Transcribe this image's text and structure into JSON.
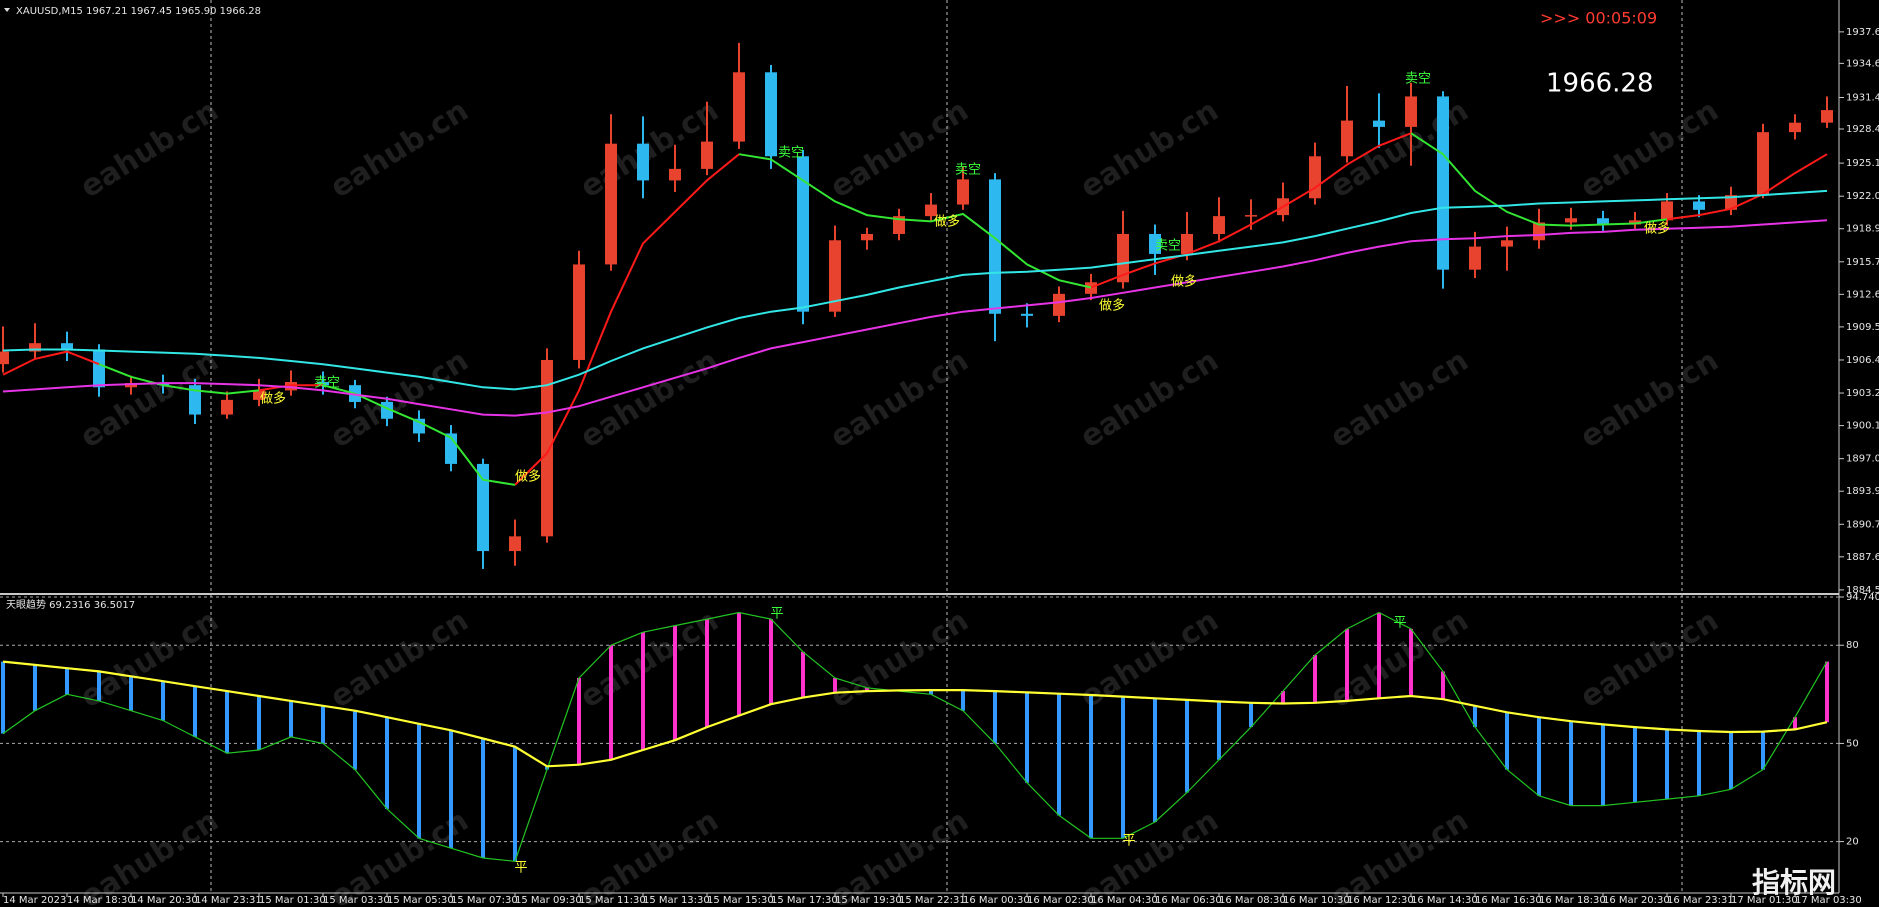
{
  "chart_data": [
    {
      "type": "candlestick",
      "title": "XAUUSD,M15  1967.21 1967.45 1965.90 1966.28",
      "categories": [
        "14 Mar 2023",
        null,
        "14 Mar 18:30",
        null,
        "14 Mar 20:30",
        null,
        "14 Mar 23:31",
        null,
        "15 Mar 01:30",
        null,
        "15 Mar 03:30",
        null,
        "15 Mar 05:30",
        null,
        "15 Mar 07:30",
        null,
        "15 Mar 09:30",
        null,
        "15 Mar 11:30",
        null,
        "15 Mar 13:30",
        null,
        "15 Mar 15:30",
        null,
        "15 Mar 17:30",
        null,
        "15 Mar 19:30",
        null,
        "15 Mar 22:31",
        null,
        "16 Mar 00:30",
        null,
        "16 Mar 02:30",
        null,
        "16 Mar 04:30",
        null,
        "16 Mar 06:30",
        null,
        "16 Mar 08:30",
        null,
        "16 Mar 10:30",
        null,
        "16 Mar 12:30",
        null,
        "16 Mar 14:30",
        null,
        "16 Mar 16:30",
        null,
        "16 Mar 18:30",
        null,
        "16 Mar 20:30",
        null,
        "16 Mar 23:31",
        null,
        "17 Mar 01:30",
        null,
        "17 Mar 03:30",
        null
      ],
      "open": [
        1906.0,
        1907.2,
        1908.0,
        1907.4,
        1903.8,
        1904.2,
        1904.0,
        1901.2,
        1902.6,
        1903.5,
        1904.3,
        1904.0,
        1902.4,
        1900.8,
        1899.4,
        1896.5,
        1888.2,
        1889.6,
        1906.4,
        1915.5,
        1927.0,
        1923.5,
        1924.6,
        1927.2,
        1933.8,
        1925.8,
        1911.0,
        1917.8,
        1918.4,
        1920.1,
        1921.2,
        1923.6,
        1910.8,
        1910.6,
        1912.7,
        1913.8,
        1918.4,
        1916.5,
        1918.4,
        1920.1,
        1920.2,
        1921.8,
        1925.8,
        1929.2,
        1928.6,
        1931.5,
        1915.0,
        1917.2,
        1917.8,
        1919.5,
        1919.9,
        1919.3,
        1919.7,
        1921.5,
        1920.7,
        1922.1,
        1928.1,
        1929.0
      ],
      "high": [
        1909.6,
        1909.9,
        1909.1,
        1907.9,
        1904.9,
        1905.0,
        1904.6,
        1903.4,
        1904.6,
        1905.4,
        1905.3,
        1904.5,
        1902.9,
        1901.6,
        1900.2,
        1897.0,
        1891.2,
        1907.5,
        1916.8,
        1929.8,
        1929.6,
        1926.9,
        1931.0,
        1936.6,
        1934.5,
        1926.4,
        1919.2,
        1919.0,
        1920.8,
        1922.3,
        1924.8,
        1924.2,
        1911.8,
        1913.4,
        1914.6,
        1920.6,
        1919.3,
        1920.5,
        1921.9,
        1921.7,
        1923.3,
        1927.1,
        1932.5,
        1931.8,
        1932.8,
        1932.0,
        1918.6,
        1919.1,
        1920.8,
        1920.9,
        1920.6,
        1920.5,
        1922.3,
        1922.1,
        1922.9,
        1928.9,
        1929.8,
        1931.5
      ],
      "low": [
        1905.2,
        1906.5,
        1906.3,
        1902.9,
        1903.1,
        1903.2,
        1900.3,
        1900.8,
        1902.0,
        1903.0,
        1903.1,
        1901.8,
        1900.1,
        1898.6,
        1895.8,
        1886.5,
        1886.8,
        1889.0,
        1905.6,
        1914.9,
        1921.8,
        1922.4,
        1924.0,
        1926.5,
        1924.6,
        1909.8,
        1910.5,
        1916.9,
        1917.8,
        1919.6,
        1920.7,
        1908.2,
        1909.5,
        1910.0,
        1912.1,
        1913.2,
        1914.5,
        1915.9,
        1917.6,
        1918.8,
        1919.6,
        1921.2,
        1925.2,
        1926.6,
        1924.9,
        1913.2,
        1914.2,
        1914.9,
        1917.0,
        1918.8,
        1918.7,
        1918.9,
        1919.2,
        1920.0,
        1920.2,
        1921.8,
        1927.4,
        1928.5
      ],
      "close": [
        1907.2,
        1908.0,
        1907.4,
        1903.8,
        1904.2,
        1904.0,
        1901.2,
        1902.6,
        1903.5,
        1904.3,
        1904.0,
        1902.4,
        1900.8,
        1899.4,
        1896.5,
        1888.2,
        1889.6,
        1906.4,
        1915.5,
        1927.0,
        1923.5,
        1924.6,
        1927.2,
        1933.8,
        1925.8,
        1911.0,
        1917.8,
        1918.4,
        1920.1,
        1921.2,
        1923.6,
        1910.8,
        1910.6,
        1912.7,
        1913.8,
        1918.4,
        1916.5,
        1918.4,
        1920.1,
        1920.2,
        1921.8,
        1925.8,
        1929.2,
        1928.6,
        1931.5,
        1915.0,
        1917.2,
        1917.8,
        1919.5,
        1919.9,
        1919.3,
        1919.7,
        1921.5,
        1920.7,
        1922.1,
        1928.1,
        1929.0,
        1930.2
      ],
      "up_color": "#e8432e",
      "down_color": "#2eb8f0",
      "lines": [
        {
          "color": "#ff1a1a",
          "values": [
            1905.0,
            1906.5,
            1907.2,
            1906.0,
            null,
            null,
            null,
            null,
            1903.5,
            1904.0,
            1904.0,
            null,
            null,
            null,
            null,
            null,
            1894.5,
            1897.5,
            1903.5,
            1911.0,
            1917.5,
            1920.5,
            1923.5,
            1926.0,
            null,
            null,
            null,
            null,
            null,
            null,
            null,
            null,
            null,
            null,
            1913.3,
            1914.5,
            1915.6,
            1916.5,
            1917.7,
            1919.3,
            1921.0,
            1922.8,
            1925.0,
            1926.8,
            1928.0,
            null,
            null,
            null,
            null,
            null,
            null,
            null,
            1919.8,
            1920.2,
            1920.8,
            1922.2,
            1924.2,
            1926.0
          ]
        },
        {
          "color": "#33e633",
          "values": [
            null,
            null,
            null,
            1906.0,
            1904.8,
            1904.0,
            1903.5,
            1903.2,
            1903.5,
            null,
            1904.0,
            1903.2,
            1901.8,
            1900.5,
            1899.0,
            1895.0,
            1894.5,
            null,
            null,
            null,
            null,
            null,
            null,
            1926.0,
            1925.5,
            1923.5,
            1921.5,
            1920.2,
            1919.8,
            1919.6,
            1920.3,
            1918.0,
            1915.5,
            1914.0,
            1913.3,
            null,
            null,
            null,
            null,
            null,
            null,
            null,
            null,
            null,
            1928.0,
            1926.0,
            1922.5,
            1920.5,
            1919.3,
            1919.2,
            1919.3,
            1919.4,
            1919.8,
            null,
            null,
            null,
            null,
            null
          ]
        },
        {
          "color": "#33e6e6",
          "values": [
            1907.3,
            1907.4,
            1907.4,
            1907.3,
            1907.2,
            1907.1,
            1907.0,
            1906.8,
            1906.6,
            1906.3,
            1906.0,
            1905.6,
            1905.2,
            1904.8,
            1904.3,
            1903.8,
            1903.6,
            1904.0,
            1905.0,
            1906.3,
            1907.5,
            1908.5,
            1909.5,
            1910.4,
            1911.0,
            1911.4,
            1912.0,
            1912.6,
            1913.3,
            1913.9,
            1914.5,
            1914.7,
            1914.8,
            1915.0,
            1915.2,
            1915.6,
            1916.0,
            1916.4,
            1916.8,
            1917.2,
            1917.6,
            1918.2,
            1918.9,
            1919.6,
            1920.4,
            1920.9,
            1921.0,
            1921.1,
            1921.3,
            1921.4,
            1921.5,
            1921.6,
            1921.7,
            1921.8,
            1921.9,
            1922.1,
            1922.3,
            1922.5
          ]
        },
        {
          "color": "#e633e6",
          "values": [
            1903.4,
            1903.6,
            1903.8,
            1904.0,
            1904.1,
            1904.2,
            1904.2,
            1904.1,
            1904.0,
            1903.8,
            1903.5,
            1903.1,
            1902.7,
            1902.2,
            1901.7,
            1901.2,
            1901.1,
            1901.4,
            1902.0,
            1902.9,
            1903.8,
            1904.7,
            1905.6,
            1906.6,
            1907.5,
            1908.1,
            1908.7,
            1909.3,
            1909.9,
            1910.5,
            1911.0,
            1911.3,
            1911.6,
            1911.9,
            1912.3,
            1912.8,
            1913.3,
            1913.8,
            1914.3,
            1914.8,
            1915.3,
            1915.9,
            1916.6,
            1917.2,
            1917.7,
            1917.9,
            1918.0,
            1918.2,
            1918.3,
            1918.5,
            1918.6,
            1918.8,
            1918.9,
            1919.0,
            1919.1,
            1919.3,
            1919.5,
            1919.7
          ]
        }
      ],
      "ylim": [
        1884.3,
        1940.4
      ],
      "yticks": [
        1937.65,
        1934.65,
        {
          "value": 1931.4,
          "label": "1931.40"
        },
        {
          "value": 1928.4,
          "label": "1928.40"
        },
        1925.15,
        {
          "value": 1922,
          "label": "1922.00"
        },
        {
          "value": 1918.9,
          "label": "1918.90"
        },
        1915.75,
        1912.65,
        1909.55,
        {
          "value": 1906.4,
          "label": "1906.40"
        },
        1903.25,
        1900.15,
        {
          "value": 1897,
          "label": "1897.00"
        },
        {
          "value": 1893.9,
          "label": "1893.90"
        },
        1890.75,
        1887.65,
        {
          "value": 1884.5,
          "label": "1884.50"
        }
      ]
    },
    {
      "type": "line",
      "title": "天眼趋势 69.2316 36.5017",
      "series": [
        {
          "color": "#22c322",
          "values": [
            53,
            60,
            65,
            63,
            60,
            57,
            52,
            47,
            48,
            52,
            50,
            42,
            30,
            21,
            18,
            15,
            14,
            42,
            70,
            80,
            84,
            86,
            88,
            90,
            88,
            78,
            70,
            67,
            66,
            65,
            60,
            50,
            38,
            28,
            21,
            21,
            26,
            35,
            45,
            55,
            66,
            77,
            85,
            90,
            85,
            72,
            55,
            42,
            34,
            31,
            31,
            32,
            33,
            34,
            36,
            42,
            58,
            75
          ]
        },
        {
          "color": "#ffff33",
          "values": [
            75,
            74,
            73,
            72,
            70.5,
            69,
            67.5,
            66,
            64.5,
            63,
            61.5,
            60,
            58,
            56,
            54,
            51.5,
            49,
            43,
            43.5,
            45,
            48,
            51,
            55,
            58.5,
            62,
            64,
            65.5,
            66,
            66.2,
            66.3,
            66.3,
            66,
            65.6,
            65.2,
            64.8,
            64.3,
            63.8,
            63.3,
            62.8,
            62.4,
            62.2,
            62.4,
            63,
            63.8,
            64.5,
            63.5,
            61.5,
            59.5,
            58,
            56.8,
            55.8,
            55,
            54.3,
            53.8,
            53.5,
            53.6,
            54.3,
            56.5
          ]
        }
      ],
      "histogram_colors": [
        "#ff33cc",
        "#3399ff"
      ],
      "ylim": [
        4.3,
        94.7406
      ],
      "yticks": [
        94.7406,
        80,
        50,
        20
      ],
      "grid": true
    }
  ],
  "countdown": ">>> 00:05:09",
  "price_label": "1966.28",
  "annotations": {
    "sell": "卖空",
    "buy": "做多",
    "flat": "平"
  },
  "watermark": "eahub.cn",
  "logo": "指标网"
}
